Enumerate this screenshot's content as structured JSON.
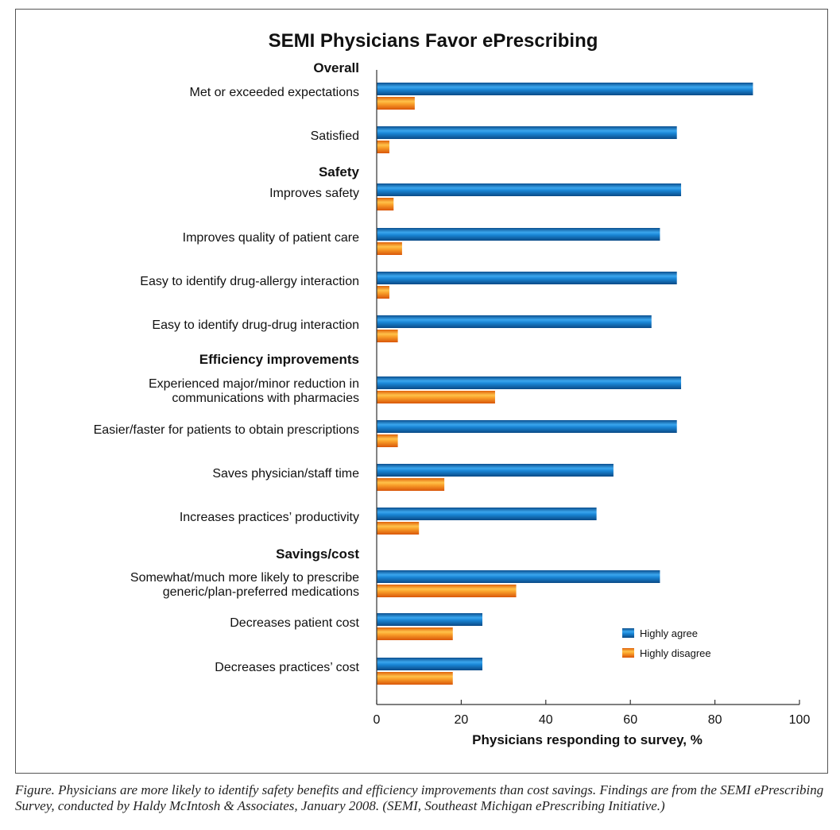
{
  "chart_data": {
    "type": "bar",
    "orientation": "horizontal",
    "title": "SEMI Physicians Favor ePrescribing",
    "xlabel": "Physicians responding to survey, %",
    "ylabel": "",
    "xlim": [
      0,
      100
    ],
    "xticks": [
      "0",
      "20",
      "40",
      "60",
      "80",
      "100"
    ],
    "grid": false,
    "legend_position": "bottom-right",
    "groups": [
      {
        "heading": "Overall",
        "items": [
          {
            "label": [
              "Met or exceeded expectations"
            ],
            "agree": 89,
            "disagree": 9
          },
          {
            "label": [
              "Satisfied"
            ],
            "agree": 71,
            "disagree": 3
          }
        ]
      },
      {
        "heading": "Safety",
        "items": [
          {
            "label": [
              "Improves safety"
            ],
            "agree": 72,
            "disagree": 4
          },
          {
            "label": [
              "Improves quality of patient care"
            ],
            "agree": 67,
            "disagree": 6
          },
          {
            "label": [
              "Easy to identify drug-allergy interaction"
            ],
            "agree": 71,
            "disagree": 3
          },
          {
            "label": [
              "Easy to identify drug-drug interaction"
            ],
            "agree": 65,
            "disagree": 5
          }
        ]
      },
      {
        "heading": "Efficiency improvements",
        "items": [
          {
            "label": [
              "Experienced major/minor reduction in",
              "communications with pharmacies"
            ],
            "agree": 72,
            "disagree": 28
          },
          {
            "label": [
              "Easier/faster for patients to obtain prescriptions"
            ],
            "agree": 71,
            "disagree": 5
          },
          {
            "label": [
              "Saves physician/staff time"
            ],
            "agree": 56,
            "disagree": 16
          },
          {
            "label": [
              "Increases practices’ productivity"
            ],
            "agree": 52,
            "disagree": 10
          }
        ]
      },
      {
        "heading": "Savings/cost",
        "items": [
          {
            "label": [
              "Somewhat/much more likely to prescribe",
              "generic/plan-preferred medications"
            ],
            "agree": 67,
            "disagree": 33
          },
          {
            "label": [
              "Decreases patient cost"
            ],
            "agree": 25,
            "disagree": 18
          },
          {
            "label": [
              "Decreases practices’ cost"
            ],
            "agree": 25,
            "disagree": 18
          }
        ]
      }
    ],
    "series": [
      {
        "name": "Highly agree",
        "color": "#1a7fd0"
      },
      {
        "name": "Highly disagree",
        "color": "#f7921e"
      }
    ]
  },
  "caption": "Figure. Physicians are more likely to identify safety benefits and efficiency improvements than cost savings. Findings are from the SEMI ePrescribing Survey, conducted by Haldy McIntosh & Associates, January 2008. (SEMI, Southeast Michigan ePrescribing Initiative.)"
}
